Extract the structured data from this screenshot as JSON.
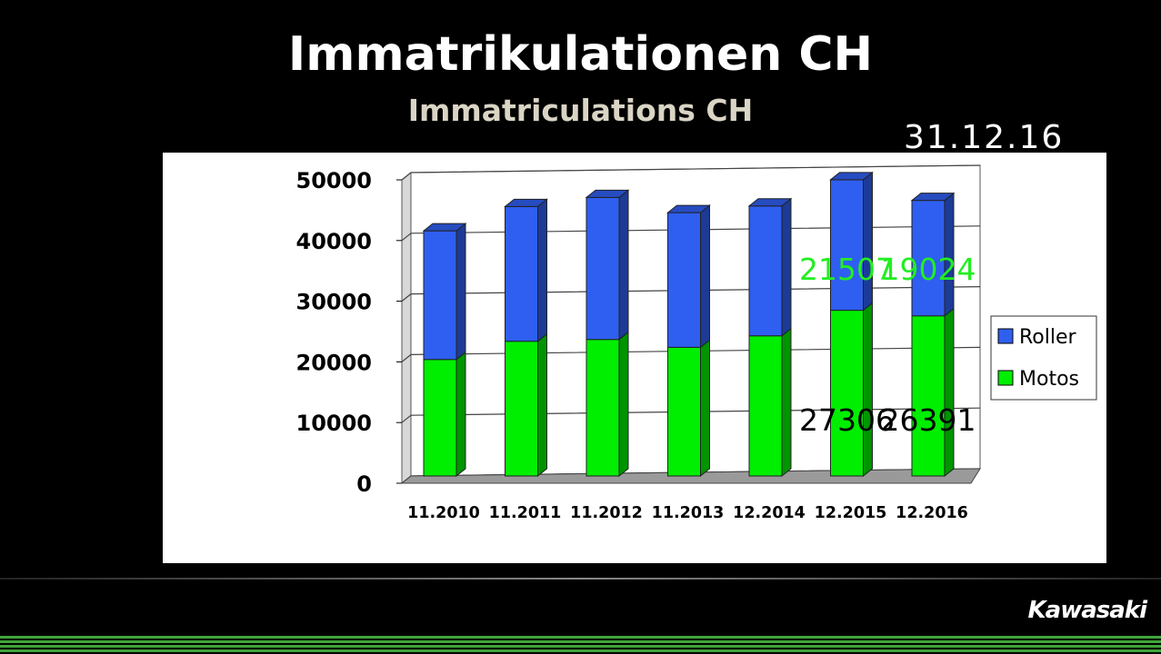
{
  "title": "Immatrikulationen CH",
  "subtitle": "Immatriculations CH",
  "date": "31.12.16",
  "brand": "Kawasaki",
  "colors": {
    "motos": "#00ee00",
    "roller": "#2f5ff0",
    "annotation_green": "#22ee22",
    "annotation_black": "#000000"
  },
  "chart_data": {
    "type": "bar",
    "stacked": true,
    "categories": [
      "11.2010",
      "11.2011",
      "11.2012",
      "11.2013",
      "12.2014",
      "12.2015",
      "12.2016"
    ],
    "series": [
      {
        "name": "Motos",
        "values": [
          19200,
          22200,
          22500,
          21200,
          23100,
          27306,
          26391
        ]
      },
      {
        "name": "Roller",
        "values": [
          21200,
          22200,
          23400,
          22200,
          21400,
          21507,
          19024
        ]
      }
    ],
    "ylim": [
      0,
      50000
    ],
    "yticks": [
      0,
      10000,
      20000,
      30000,
      40000,
      50000
    ],
    "grid": true,
    "legend_position": "right",
    "annotations": [
      {
        "text": "21507",
        "category": "12.2015",
        "series": "Roller"
      },
      {
        "text": "19024",
        "category": "12.2016",
        "series": "Roller"
      },
      {
        "text": "27306",
        "category": "12.2015",
        "series": "Motos"
      },
      {
        "text": "26391",
        "category": "12.2016",
        "series": "Motos"
      }
    ]
  }
}
